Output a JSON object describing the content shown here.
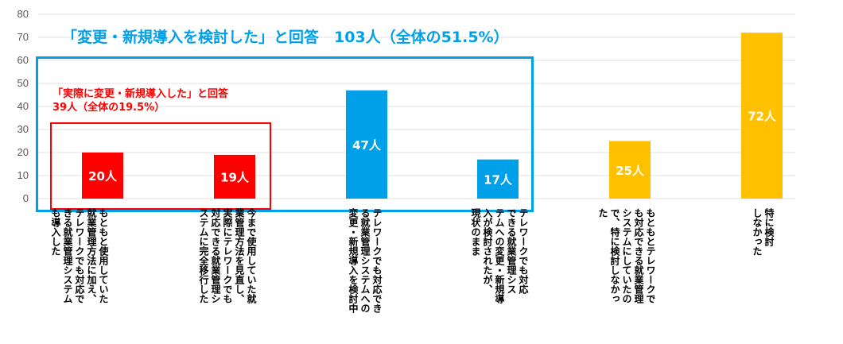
{
  "chart_data": {
    "type": "bar",
    "title": "",
    "xlabel": "",
    "ylabel": "",
    "ylim": [
      0,
      80
    ],
    "yticks": [
      0,
      10,
      20,
      30,
      40,
      50,
      60,
      70,
      80
    ],
    "grid": true,
    "categories": [
      "もともと使用していた\n就業管理方法に加え、\nテレワークでも対応で\nきる就業管理システム\nも導入した",
      "今まで使用していた就\n業管理方法を見直し、\n実際にテレワークでも\n対応できる就業管理シ\nステムに完全移行した",
      "テレワークでも対応でき\nる就業管理システムへの\n変更・新規導入を検討中",
      "テレワークでも対応\nできる就業管理シス\nテムへの変更・新規導\n入が検討されたが、\n現状のまま",
      "もともとテレワークで\nも対応できる就業管理\nシステムにしていたの\nで、特に検討しなかっ\nた",
      "特に検討\nしなかった"
    ],
    "values": [
      20,
      19,
      47,
      17,
      25,
      72
    ],
    "data_labels": [
      "20人",
      "19人",
      "47人",
      "17人",
      "25人",
      "72人"
    ],
    "colors": [
      "#ff0000",
      "#ff0000",
      "#00a0e9",
      "#00a0e9",
      "#ffc000",
      "#ffc000"
    ],
    "annotations": {
      "blue": "「変更・新規導入を検討した」と回答　103人（全体の51.5%）",
      "red_line1": "「実際に変更・新規導入した」と回答",
      "red_line2": "39人（全体の19.5%）"
    }
  }
}
